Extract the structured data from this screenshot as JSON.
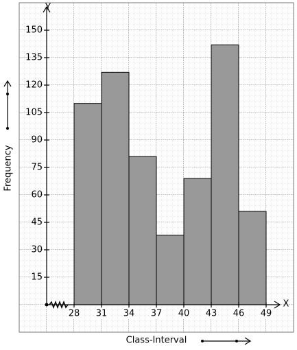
{
  "chart_data": {
    "type": "histogram",
    "x_label": "Class-Interval",
    "y_label": "Frequency",
    "x_axis_name": "X",
    "y_axis_name": "Y",
    "bins": [
      28,
      31,
      34,
      37,
      40,
      43,
      46,
      49
    ],
    "values": [
      110,
      127,
      81,
      38,
      69,
      142,
      51
    ],
    "color": "#999999",
    "ylim": [
      0,
      160
    ],
    "yticks": [
      15,
      30,
      45,
      60,
      75,
      90,
      105,
      120,
      135,
      150
    ]
  }
}
